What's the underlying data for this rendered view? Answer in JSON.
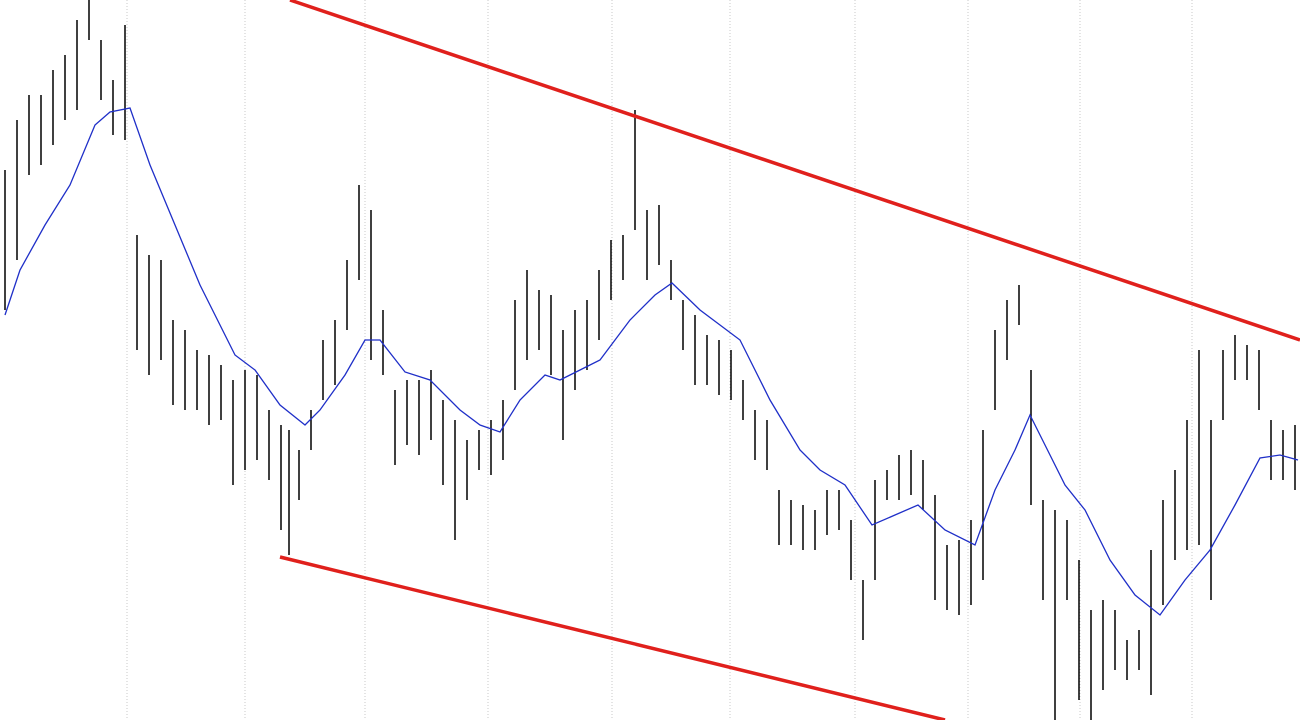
{
  "chart_data": {
    "type": "range-bar",
    "xlim": [
      0,
      1300
    ],
    "ylim": [
      0,
      720
    ],
    "xticks": [
      127,
      245,
      365,
      488,
      612,
      730,
      855,
      968,
      1080,
      1192
    ],
    "grid": true,
    "bar_color": "#000000",
    "x": [
      5,
      17,
      29,
      41,
      53,
      65,
      77,
      89,
      101,
      113,
      125,
      137,
      149,
      161,
      173,
      185,
      197,
      209,
      221,
      233,
      245,
      257,
      269,
      281,
      289,
      299,
      311,
      323,
      335,
      347,
      359,
      371,
      383,
      395,
      407,
      419,
      431,
      443,
      455,
      467,
      479,
      491,
      503,
      515,
      527,
      539,
      551,
      563,
      575,
      587,
      599,
      611,
      623,
      635,
      647,
      659,
      671,
      683,
      695,
      707,
      719,
      731,
      743,
      755,
      767,
      779,
      791,
      803,
      815,
      827,
      839,
      851,
      863,
      875,
      887,
      899,
      911,
      923,
      935,
      947,
      959,
      971,
      983,
      995,
      1007,
      1019,
      1031,
      1043,
      1055,
      1067,
      1079,
      1091,
      1103,
      1115,
      1127,
      1139,
      1151,
      1163,
      1175,
      1187,
      1199,
      1211,
      1223,
      1235,
      1247,
      1259,
      1271,
      1283,
      1295
    ],
    "high": [
      550,
      600,
      625,
      625,
      650,
      665,
      700,
      720,
      680,
      640,
      695,
      485,
      465,
      460,
      400,
      390,
      370,
      365,
      355,
      340,
      350,
      345,
      310,
      295,
      290,
      270,
      310,
      380,
      400,
      460,
      535,
      510,
      410,
      330,
      340,
      340,
      350,
      320,
      300,
      280,
      290,
      300,
      320,
      420,
      450,
      430,
      425,
      390,
      410,
      420,
      450,
      480,
      485,
      610,
      510,
      515,
      460,
      420,
      405,
      385,
      380,
      370,
      340,
      310,
      300,
      230,
      220,
      215,
      210,
      230,
      230,
      200,
      140,
      240,
      250,
      265,
      270,
      260,
      225,
      175,
      180,
      200,
      290,
      390,
      420,
      435,
      350,
      220,
      210,
      200,
      160,
      110,
      120,
      110,
      80,
      90,
      170,
      220,
      250,
      300,
      370,
      300,
      370,
      385,
      375,
      370,
      300,
      290,
      295
    ],
    "low": [
      410,
      460,
      545,
      555,
      575,
      600,
      610,
      680,
      620,
      585,
      580,
      370,
      345,
      360,
      315,
      310,
      310,
      295,
      300,
      235,
      250,
      260,
      240,
      190,
      165,
      220,
      270,
      320,
      335,
      390,
      440,
      360,
      345,
      255,
      275,
      265,
      280,
      235,
      180,
      220,
      250,
      245,
      260,
      330,
      360,
      370,
      345,
      280,
      330,
      350,
      380,
      420,
      440,
      490,
      440,
      455,
      420,
      370,
      335,
      335,
      325,
      320,
      300,
      260,
      250,
      175,
      175,
      170,
      170,
      185,
      190,
      140,
      80,
      140,
      220,
      220,
      225,
      210,
      120,
      110,
      105,
      115,
      140,
      310,
      360,
      395,
      215,
      120,
      0,
      120,
      20,
      0,
      30,
      50,
      40,
      50,
      25,
      115,
      160,
      170,
      175,
      120,
      300,
      340,
      340,
      310,
      240,
      240,
      230
    ],
    "moving_average": {
      "color": "#1f2fc8",
      "x": [
        5,
        20,
        45,
        70,
        95,
        110,
        130,
        150,
        175,
        200,
        235,
        255,
        280,
        305,
        320,
        345,
        365,
        380,
        405,
        430,
        460,
        480,
        500,
        520,
        545,
        560,
        580,
        600,
        630,
        655,
        672,
        700,
        740,
        770,
        800,
        820,
        845,
        872,
        895,
        918,
        945,
        975,
        995,
        1015,
        1030,
        1045,
        1065,
        1085,
        1110,
        1135,
        1160,
        1185,
        1210,
        1235,
        1260,
        1280,
        1298
      ],
      "values": [
        405,
        450,
        495,
        535,
        595,
        608,
        612,
        555,
        495,
        435,
        365,
        350,
        315,
        295,
        310,
        345,
        380,
        380,
        348,
        340,
        310,
        295,
        288,
        320,
        345,
        340,
        350,
        360,
        400,
        425,
        437,
        410,
        380,
        320,
        270,
        250,
        235,
        195,
        205,
        215,
        190,
        175,
        230,
        270,
        305,
        275,
        235,
        210,
        160,
        125,
        105,
        140,
        170,
        215,
        262,
        265,
        260
      ]
    },
    "trendlines": [
      {
        "color": "#e0201c",
        "x": [
          290,
          1300
        ],
        "values": [
          720,
          380
        ]
      },
      {
        "color": "#e0201c",
        "x": [
          280,
          945
        ],
        "values": [
          163,
          0
        ]
      }
    ]
  }
}
